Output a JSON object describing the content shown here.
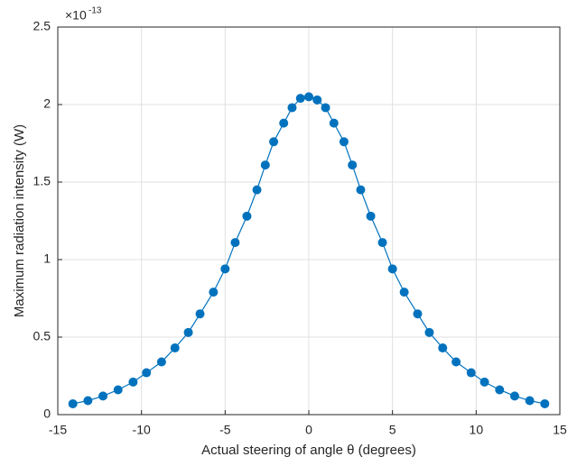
{
  "chart_data": {
    "type": "line",
    "xlabel": "Actual steering of angle θ (degrees)",
    "ylabel": "Maximum radiation intensity (W)",
    "y_exponent_base": "×10",
    "y_exponent": "-13",
    "x": [
      -14.1,
      -13.2,
      -12.3,
      -11.4,
      -10.5,
      -9.7,
      -8.8,
      -8.0,
      -7.2,
      -6.5,
      -5.7,
      -5.0,
      -4.4,
      -3.7,
      -3.1,
      -2.6,
      -2.1,
      -1.5,
      -1.0,
      -0.5,
      0,
      0.5,
      1.0,
      1.5,
      2.1,
      2.6,
      3.1,
      3.7,
      4.4,
      5.0,
      5.7,
      6.5,
      7.2,
      8.0,
      8.8,
      9.7,
      10.5,
      11.4,
      12.3,
      13.2,
      14.1
    ],
    "series": [
      {
        "color": "#0072bd",
        "values": [
          0.07,
          0.09,
          0.12,
          0.16,
          0.21,
          0.27,
          0.34,
          0.43,
          0.53,
          0.65,
          0.79,
          0.94,
          1.11,
          1.28,
          1.45,
          1.61,
          1.76,
          1.88,
          1.98,
          2.04,
          2.05,
          2.03,
          1.98,
          1.88,
          1.76,
          1.61,
          1.45,
          1.28,
          1.11,
          0.94,
          0.79,
          0.65,
          0.53,
          0.43,
          0.34,
          0.27,
          0.21,
          0.16,
          0.12,
          0.09,
          0.07
        ]
      }
    ],
    "xlim": [
      -15,
      15
    ],
    "ylim": [
      0,
      2.5
    ],
    "xticks": [
      -15,
      -10,
      -5,
      0,
      5,
      10,
      15
    ],
    "yticks": [
      0,
      0.5,
      1,
      1.5,
      2,
      2.5
    ],
    "grid": true
  }
}
